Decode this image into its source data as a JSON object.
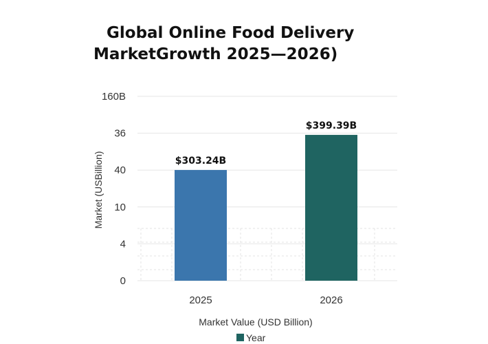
{
  "chart_data": {
    "type": "bar",
    "title_lines": [
      "Global  Online Food Delivery",
      "MarketGrowth 2025—2026)"
    ],
    "ylabel": "Market  (USBillion)",
    "xlabel": "Market Value (USD Billion)",
    "y_tick_labels": [
      "0",
      "4",
      "10",
      "40",
      "36",
      "160B"
    ],
    "categories": [
      "2025",
      "2026"
    ],
    "values": [
      303.24,
      399.39
    ],
    "data_labels": [
      "$303.24B",
      "$399.39B"
    ],
    "bar_colors": [
      "#3b76ad",
      "#1f6461"
    ],
    "ylim": [
      0,
      505
    ],
    "grid": true,
    "legend": {
      "label": "Year",
      "color": "#1f6461",
      "placement": "bottom-center"
    }
  }
}
